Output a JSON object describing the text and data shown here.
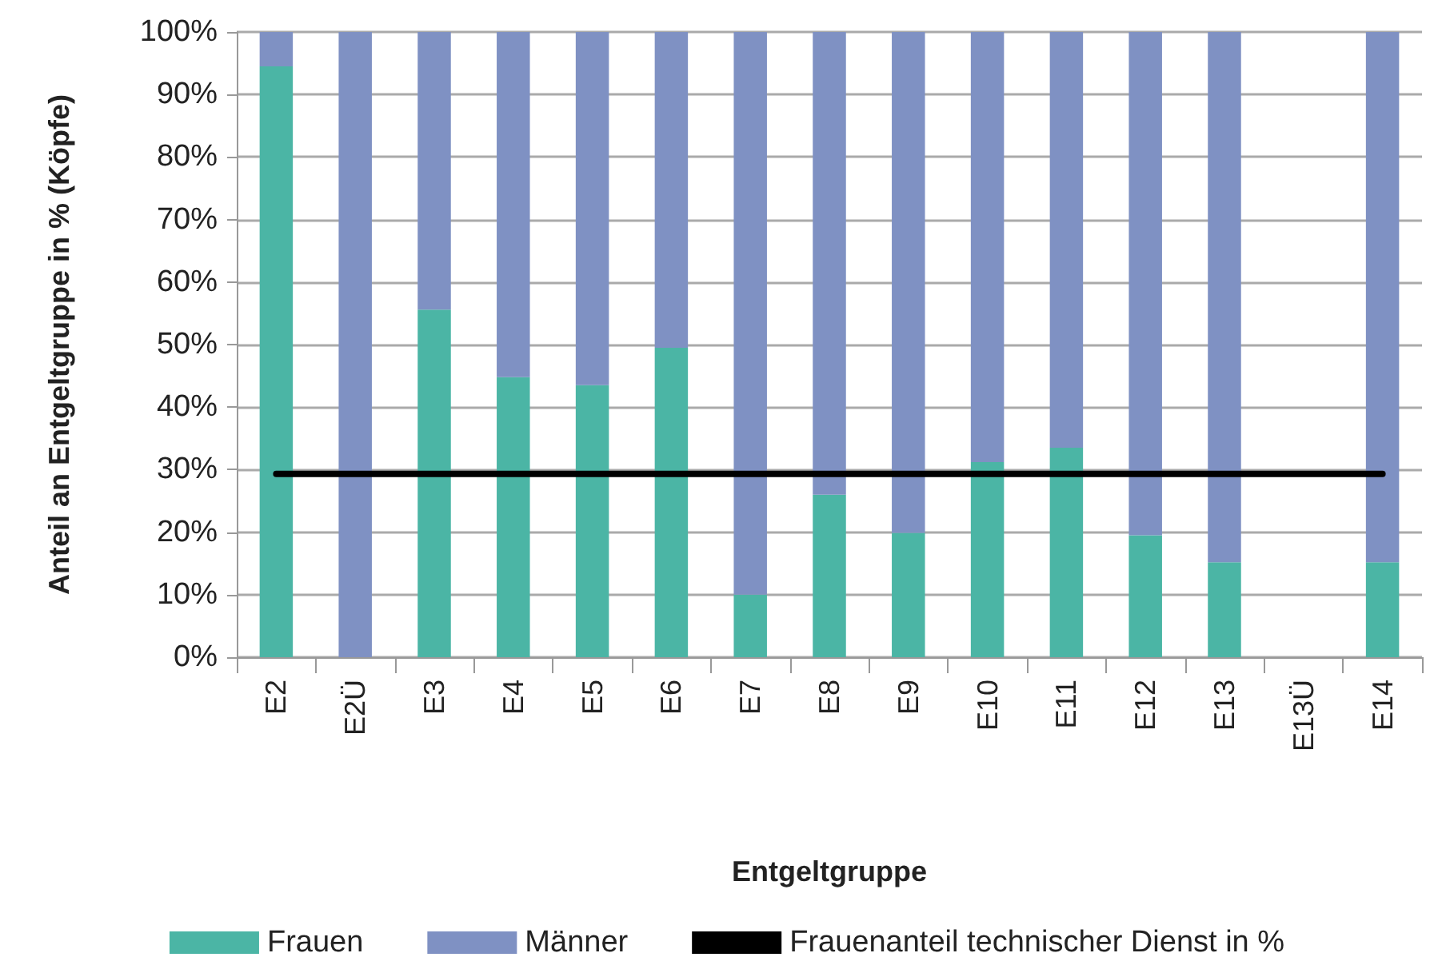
{
  "chart_data": {
    "type": "bar",
    "stacked": true,
    "xlabel": "Entgeltgruppe",
    "ylabel": "Anteil an Entgeltgruppe in % (Köpfe)",
    "categories": [
      "E2",
      "E2Ü",
      "E3",
      "E4",
      "E5",
      "E6",
      "E7",
      "E8",
      "E9",
      "E10",
      "E11",
      "E12",
      "E13",
      "E13Ü",
      "E14"
    ],
    "series": [
      {
        "name": "Frauen",
        "color": "#4bb5a5",
        "values": [
          94.5,
          0,
          55.6,
          44.8,
          43.5,
          49.5,
          10.0,
          26.0,
          19.9,
          31.2,
          33.5,
          19.5,
          15.2,
          null,
          15.2
        ]
      },
      {
        "name": "Männer",
        "color": "#7f91c3",
        "values": [
          5.5,
          100,
          44.4,
          55.2,
          56.5,
          50.5,
          90.0,
          74.0,
          80.1,
          68.8,
          66.5,
          80.5,
          84.8,
          null,
          84.8
        ]
      },
      {
        "name": "Frauenanteil technischer Dienst in %",
        "type": "line",
        "color": "#000000",
        "values": [
          29.3,
          29.3,
          29.3,
          29.3,
          29.3,
          29.3,
          29.3,
          29.3,
          29.3,
          29.3,
          29.3,
          29.3,
          29.3,
          29.3,
          29.3
        ]
      }
    ],
    "ylim": [
      0,
      100
    ],
    "yticks": [
      {
        "value": 0,
        "label": "0%"
      },
      {
        "value": 10,
        "label": "10%"
      },
      {
        "value": 20,
        "label": "20%"
      },
      {
        "value": 30,
        "label": "30%"
      },
      {
        "value": 40,
        "label": "40%"
      },
      {
        "value": 50,
        "label": "50%"
      },
      {
        "value": 60,
        "label": "60%"
      },
      {
        "value": 70,
        "label": "70%"
      },
      {
        "value": 80,
        "label": "80%"
      },
      {
        "value": 90,
        "label": "90%"
      },
      {
        "value": 100,
        "label": "100%"
      }
    ],
    "grid": "y",
    "legend": "bottom",
    "marker": "none"
  }
}
